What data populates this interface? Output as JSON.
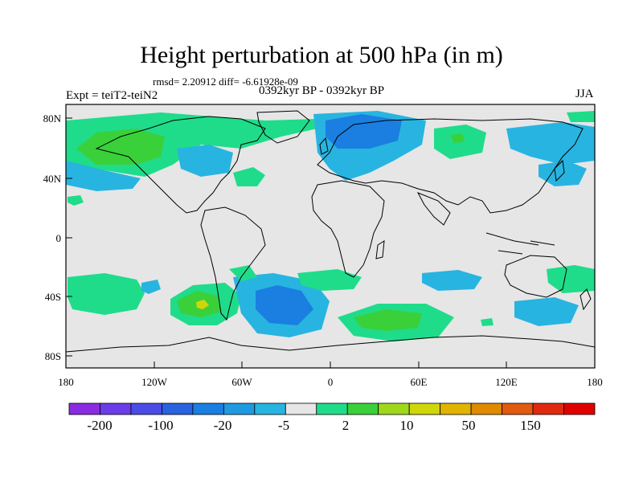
{
  "title": "Height perturbation at 500 hPa (in m)",
  "subtitle_left": "Expt = teiT2-teiN2",
  "subtitle_center": "0392kyr BP - 0392kyr BP",
  "subtitle_right": "JJA",
  "stats": "rmsd= 2.20912 diff= -6.61928e-09",
  "lat_labels": [
    "80N",
    "40N",
    "0",
    "40S",
    "80S"
  ],
  "lon_labels": [
    "180",
    "120W",
    "60W",
    "0",
    "60E",
    "120E",
    "180"
  ],
  "colorbar": {
    "colors": [
      "#8a2be2",
      "#6a3de8",
      "#4b4be6",
      "#2a62e0",
      "#1a7fe0",
      "#1f9ae0",
      "#28b4e0",
      "#e6e6e6",
      "#1fdc8a",
      "#3ad03a",
      "#9fd81a",
      "#cfd60a",
      "#e0b400",
      "#e08a00",
      "#e05a10",
      "#e02a10",
      "#e00000"
    ],
    "labels": [
      "-200",
      "-100",
      "-20",
      "-5",
      "2",
      "10",
      "50",
      "150"
    ]
  },
  "background_color": "#e6e6e6",
  "map_fields": [
    {
      "level": "blue",
      "color": "#1a7fe0"
    },
    {
      "level": "cyan",
      "color": "#28b4e0"
    },
    {
      "level": "teal",
      "color": "#1fdc8a"
    },
    {
      "level": "green",
      "color": "#3ad03a"
    },
    {
      "level": "yellow",
      "color": "#cfd60a"
    }
  ]
}
